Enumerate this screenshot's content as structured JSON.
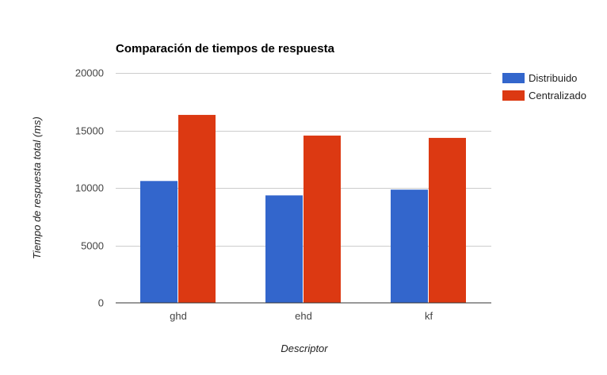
{
  "chart_data": {
    "type": "bar",
    "title": "Comparación de tiempos de respuesta",
    "xlabel": "Descriptor",
    "ylabel": "Tiempo de respuesta total (ms)",
    "categories": [
      "ghd",
      "ehd",
      "kf"
    ],
    "ylim": [
      0,
      20000
    ],
    "yticks": [
      0,
      5000,
      10000,
      15000,
      20000
    ],
    "grid": true,
    "legend_position": "right",
    "series": [
      {
        "name": "Distribuido",
        "color": "#3366cc",
        "values": [
          10600,
          9350,
          9850
        ]
      },
      {
        "name": "Centralizado",
        "color": "#dc3912",
        "values": [
          16350,
          14550,
          14350
        ]
      }
    ]
  }
}
